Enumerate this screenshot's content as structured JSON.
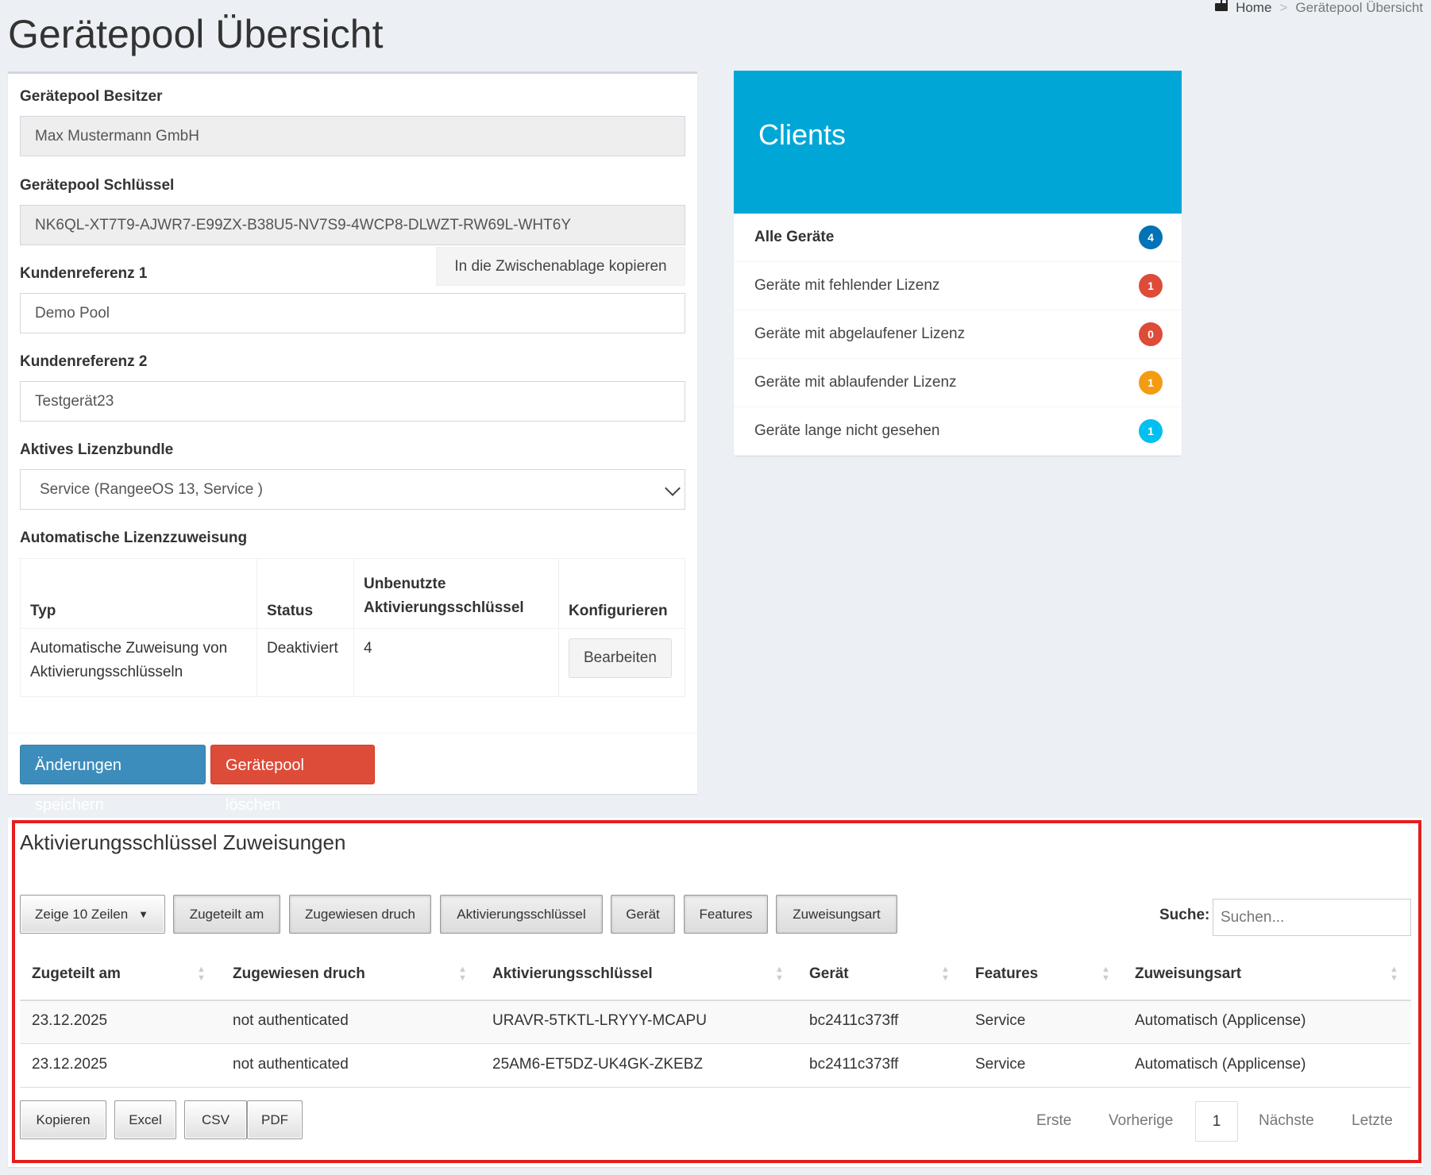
{
  "page": {
    "title": "Gerätepool Übersicht"
  },
  "breadcrumb": {
    "home": "Home",
    "separator": ">",
    "current": "Gerätepool Übersicht"
  },
  "form": {
    "owner_label": "Gerätepool Besitzer",
    "owner_value": "Max Mustermann GmbH",
    "key_label": "Gerätepool Schlüssel",
    "key_value": "NK6QL-XT7T9-AJWR7-E99ZX-B38U5-NV7S9-4WCP8-DLWZT-RW69L-WHT6Y",
    "copy_label": "In die Zwischenablage kopieren",
    "ref1_label": "Kundenreferenz 1",
    "ref1_value": "Demo Pool",
    "ref2_label": "Kundenreferenz 2",
    "ref2_value": "Testgerät23",
    "bundle_label": "Aktives Lizenzbundle",
    "bundle_value": "Service (RangeeOS 13, Service )",
    "auto_label": "Automatische Lizenzzuweisung",
    "auto_table": {
      "headers": [
        "Typ",
        "Status",
        "Unbenutzte Aktivierungsschlüssel",
        "Konfigurieren"
      ],
      "row": {
        "typ": "Automatische Zuweisung von Aktivierungsschlüsseln",
        "status": "Deaktiviert",
        "unused": "4",
        "edit": "Bearbeiten"
      }
    },
    "save_label": "Änderungen speichern",
    "delete_label": "Gerätepool löschen"
  },
  "clients": {
    "title": "Clients",
    "items": [
      {
        "label": "Alle Geräte",
        "count": "4",
        "color": "#0073b7"
      },
      {
        "label": "Geräte mit fehlender Lizenz",
        "count": "1",
        "color": "#dd4b39"
      },
      {
        "label": "Geräte mit abgelaufener Lizenz",
        "count": "0",
        "color": "#dd4b39"
      },
      {
        "label": "Geräte mit ablaufender Lizenz",
        "count": "1",
        "color": "#f39c12"
      },
      {
        "label": "Geräte lange nicht gesehen",
        "count": "1",
        "color": "#00c0ef"
      }
    ]
  },
  "assignments": {
    "title": "Aktivierungsschlüssel Zuweisungen",
    "length_label": "Zeige 10 Zeilen",
    "column_toggles": [
      "Zugeteilt am",
      "Zugewiesen druch",
      "Aktivierungsschlüssel",
      "Gerät",
      "Features",
      "Zuweisungsart"
    ],
    "search_label": "Suche:",
    "search_placeholder": "Suchen...",
    "columns": [
      "Zugeteilt am",
      "Zugewiesen druch",
      "Aktivierungsschlüssel",
      "Gerät",
      "Features",
      "Zuweisungsart"
    ],
    "rows": [
      [
        "23.12.2025",
        "not authenticated",
        "URAVR-5TKTL-LRYYY-MCAPU",
        "bc2411c373ff",
        "Service",
        "Automatisch (Applicense)"
      ],
      [
        "23.12.2025",
        "not authenticated",
        "25AM6-ET5DZ-UK4GK-ZKEBZ",
        "bc2411c373ff",
        "Service",
        "Automatisch (Applicense)"
      ]
    ],
    "export_buttons": [
      "Kopieren",
      "Excel",
      "CSV",
      "PDF"
    ],
    "pagination": {
      "first": "Erste",
      "prev": "Vorherige",
      "current": "1",
      "next": "Nächste",
      "last": "Letzte"
    }
  }
}
